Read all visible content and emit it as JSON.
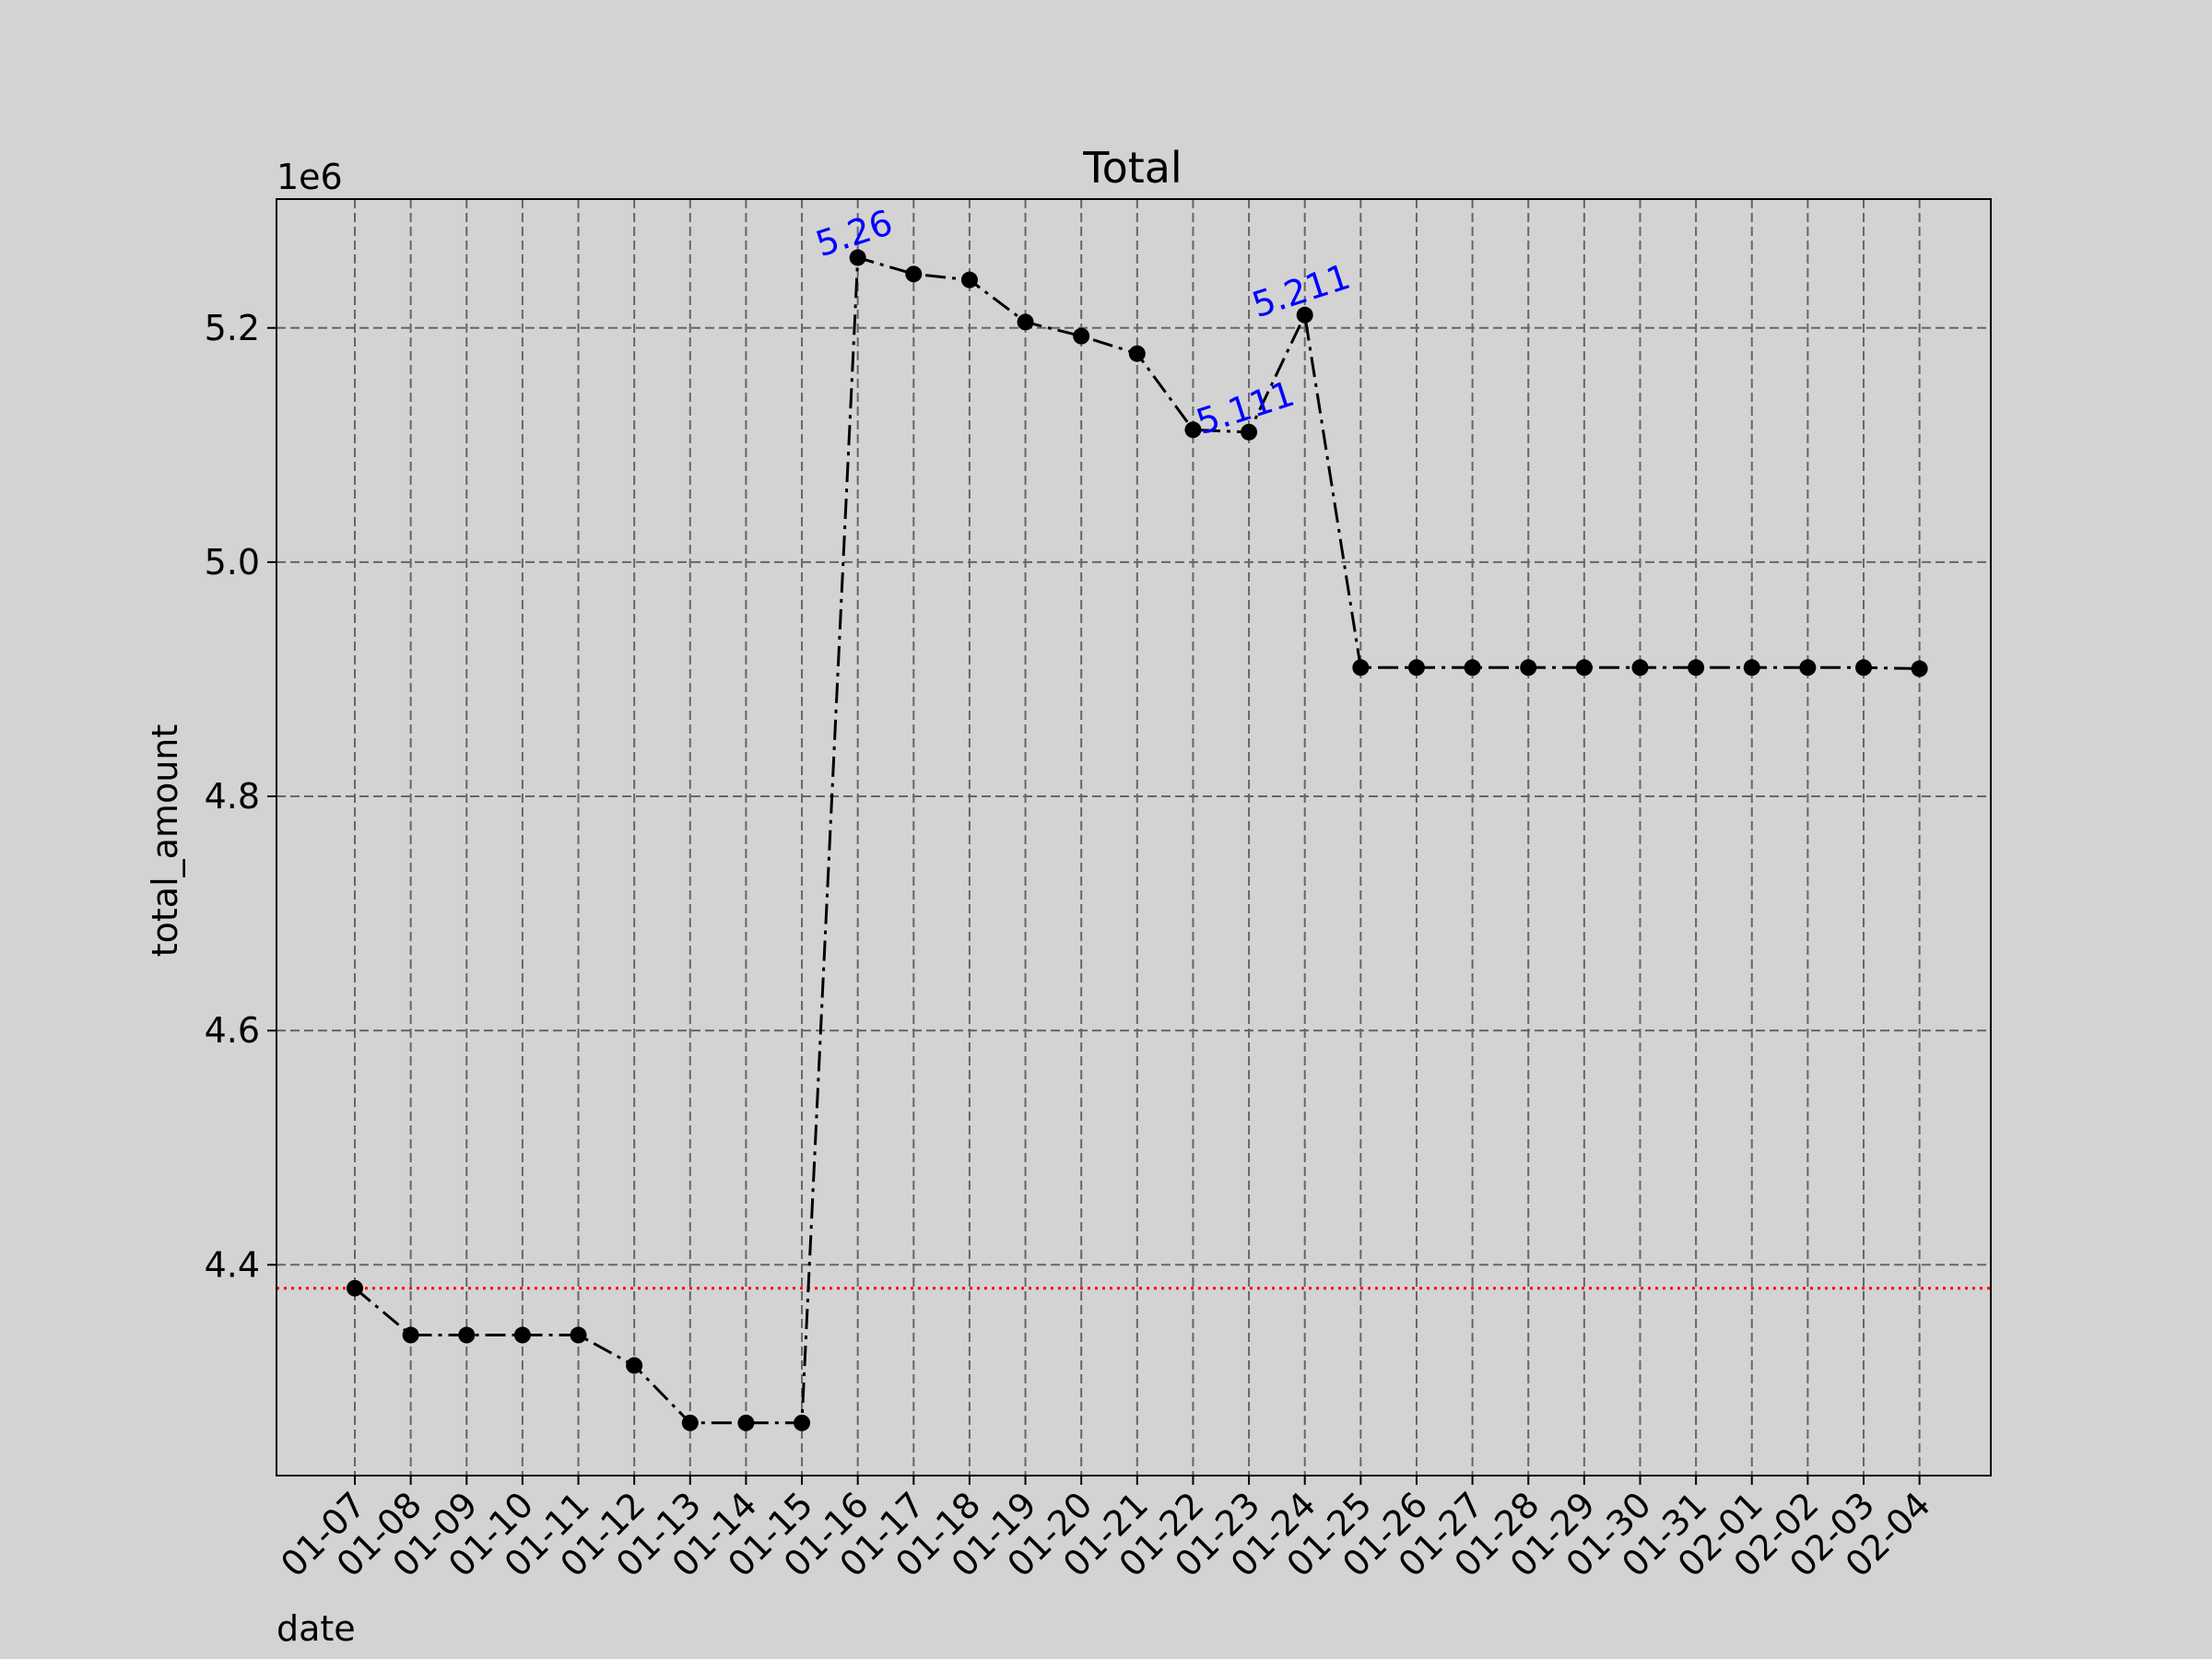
{
  "chart_data": {
    "type": "line",
    "title": "Total",
    "xlabel": "date",
    "ylabel": "total_amount",
    "y_offset_label": "1e6",
    "y_scale": 1000000,
    "ylim": [
      4.22,
      5.31
    ],
    "yticks": [
      4.4,
      4.6,
      4.8,
      5.0,
      5.2
    ],
    "ytick_labels": [
      "4.4",
      "4.6",
      "4.8",
      "5.0",
      "5.2"
    ],
    "grid": true,
    "categories": [
      "01-07",
      "01-08",
      "01-09",
      "01-10",
      "01-11",
      "01-12",
      "01-13",
      "01-14",
      "01-15",
      "01-16",
      "01-17",
      "01-18",
      "01-19",
      "01-20",
      "01-21",
      "01-22",
      "01-23",
      "01-24",
      "01-25",
      "01-26",
      "01-27",
      "01-28",
      "01-29",
      "01-30",
      "01-31",
      "02-01",
      "02-02",
      "02-03",
      "02-04"
    ],
    "series": [
      {
        "values": [
          4.38,
          4.34,
          4.34,
          4.34,
          4.34,
          4.314,
          4.265,
          4.265,
          4.265,
          5.26,
          5.246,
          5.241,
          5.205,
          5.193,
          5.178,
          5.113,
          5.111,
          5.211,
          4.91,
          4.91,
          4.91,
          4.91,
          4.91,
          4.91,
          4.91,
          4.91,
          4.91,
          4.91,
          4.909
        ],
        "color": "#000000",
        "line_style": "dash-dot",
        "marker": "circle"
      }
    ],
    "reference_line": {
      "value": 4.38,
      "color": "#ff0000",
      "style": "dotted"
    },
    "annotations": [
      {
        "category": "01-16",
        "value": 5.26,
        "text": "5.26"
      },
      {
        "category": "01-23",
        "value": 5.111,
        "text": "5.111"
      },
      {
        "category": "01-24",
        "value": 5.211,
        "text": "5.211"
      }
    ],
    "colors": {
      "background": "#d3d3d3",
      "grid": "#666666",
      "annotation": "#0000ff"
    }
  }
}
